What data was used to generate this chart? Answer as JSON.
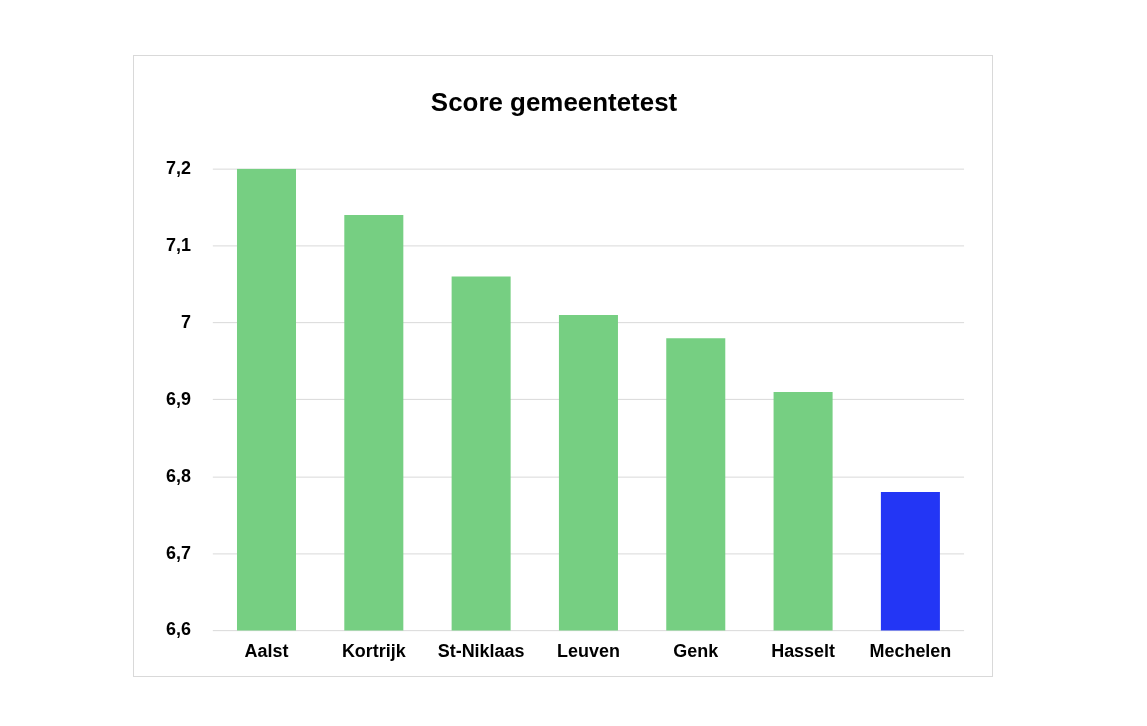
{
  "chart_data": {
    "type": "bar",
    "title": "Score gemeentetest",
    "categories": [
      "Aalst",
      "Kortrijk",
      "St-Niklaas",
      "Leuven",
      "Genk",
      "Hasselt",
      "Mechelen"
    ],
    "values": [
      7.2,
      7.14,
      7.06,
      7.01,
      6.98,
      6.91,
      6.78
    ],
    "colors": [
      "#76cf82",
      "#76cf82",
      "#76cf82",
      "#76cf82",
      "#76cf82",
      "#76cf82",
      "#2336f5"
    ],
    "ylim": [
      6.6,
      7.2
    ],
    "yticks": [
      {
        "value": 6.6,
        "label": "6,6"
      },
      {
        "value": 6.7,
        "label": "6,7"
      },
      {
        "value": 6.8,
        "label": "6,8"
      },
      {
        "value": 6.9,
        "label": "6,9"
      },
      {
        "value": 7,
        "label": "7"
      },
      {
        "value": 7.1,
        "label": "7,1"
      },
      {
        "value": 7.2,
        "label": "7,2"
      }
    ],
    "grid": "y",
    "legend": false
  }
}
